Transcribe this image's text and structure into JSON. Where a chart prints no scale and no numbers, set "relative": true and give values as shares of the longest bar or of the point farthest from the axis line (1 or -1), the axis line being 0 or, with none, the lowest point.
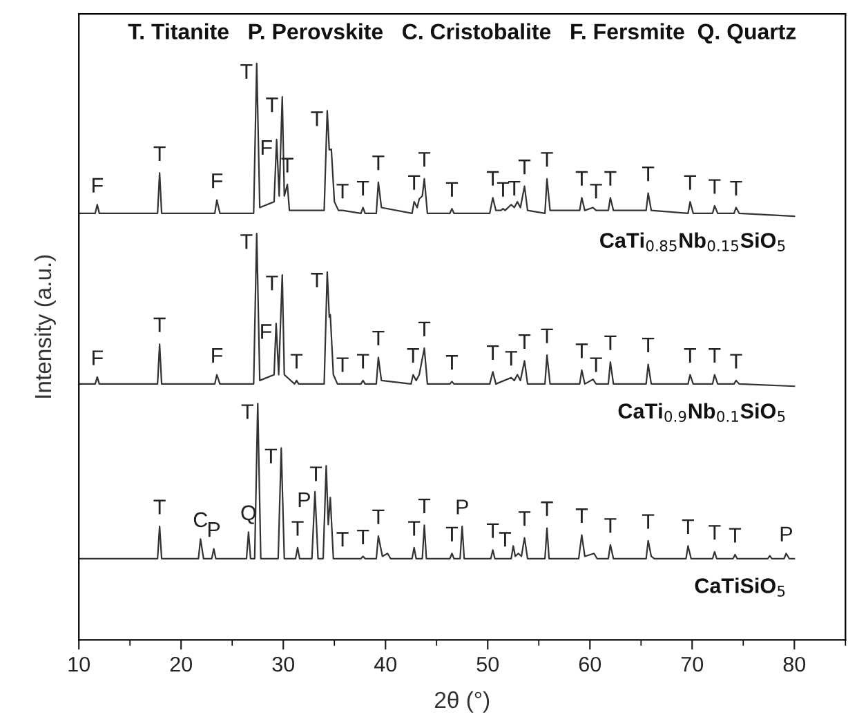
{
  "chart_data": {
    "type": "line",
    "relative": true,
    "xlabel": "2θ (°)",
    "ylabel": "Intensity (a.u.)",
    "xlim": [
      10,
      85
    ],
    "xticks": [
      10,
      20,
      30,
      40,
      50,
      60,
      70,
      80
    ],
    "grid": false,
    "legend": false,
    "marker": "none",
    "line_style": "solid",
    "tick_labels": "x",
    "series": [
      {
        "name": "CaTi$_{0.85}$Nb$_{0.15}$SiO$_{5}$",
        "color": "#333333",
        "x": [
          10,
          11.6,
          11.8,
          12.0,
          17.7,
          17.9,
          18.1,
          23.3,
          23.5,
          23.8,
          27.1,
          27.4,
          27.7,
          29.1,
          29.35,
          29.6,
          29.9,
          30.1,
          30.4,
          30.6,
          34.0,
          34.3,
          34.5,
          34.7,
          35.0,
          35.4,
          35.8,
          37.6,
          37.8,
          38.0,
          39.1,
          39.3,
          39.6,
          42.6,
          42.8,
          43.1,
          43.3,
          43.6,
          43.8,
          44.1,
          46.3,
          46.5,
          46.7,
          50.2,
          50.5,
          50.8,
          51.3,
          51.5,
          51.7,
          52.3,
          52.6,
          52.9,
          53.2,
          53.6,
          53.9,
          55.6,
          55.8,
          56.1,
          59.0,
          59.2,
          59.5,
          60.3,
          60.6,
          61.8,
          62.0,
          62.3,
          65.5,
          65.7,
          66.0,
          69.6,
          69.8,
          70.1,
          72.0,
          72.2,
          72.5,
          74.1,
          74.3,
          74.6,
          80
        ],
        "values": [
          0.74,
          0.74,
          0.755,
          0.74,
          0.74,
          0.81,
          0.74,
          0.74,
          0.763,
          0.74,
          0.74,
          1.0,
          0.75,
          0.76,
          0.868,
          0.77,
          0.942,
          0.77,
          0.79,
          0.745,
          0.745,
          0.918,
          0.85,
          0.851,
          0.76,
          0.745,
          0.745,
          0.74,
          0.75,
          0.74,
          0.74,
          0.794,
          0.75,
          0.74,
          0.76,
          0.75,
          0.765,
          0.77,
          0.8,
          0.74,
          0.74,
          0.748,
          0.74,
          0.74,
          0.767,
          0.745,
          0.745,
          0.748,
          0.745,
          0.755,
          0.75,
          0.76,
          0.75,
          0.787,
          0.745,
          0.74,
          0.8,
          0.745,
          0.745,
          0.767,
          0.745,
          0.75,
          0.745,
          0.745,
          0.767,
          0.745,
          0.745,
          0.775,
          0.745,
          0.74,
          0.76,
          0.74,
          0.74,
          0.753,
          0.74,
          0.74,
          0.75,
          0.74,
          0.735
        ]
      },
      {
        "name": "CaTi$_{0.9}$Nb$_{0.1}$SiO$_{5}$",
        "color": "#333333",
        "x": [
          10,
          11.6,
          11.8,
          12.0,
          17.7,
          17.9,
          18.1,
          23.3,
          23.5,
          23.8,
          27.1,
          27.4,
          27.7,
          29.1,
          29.3,
          29.55,
          29.9,
          30.1,
          31.1,
          31.3,
          31.5,
          34.0,
          34.3,
          34.5,
          34.6,
          34.9,
          35.3,
          35.8,
          37.6,
          37.8,
          38.0,
          39.1,
          39.3,
          39.6,
          42.5,
          42.7,
          43.0,
          43.3,
          43.8,
          44.1,
          46.3,
          46.5,
          46.7,
          50.2,
          50.5,
          50.8,
          52.3,
          52.6,
          52.9,
          53.2,
          53.6,
          53.9,
          55.6,
          55.8,
          56.1,
          59.0,
          59.2,
          59.5,
          60.3,
          60.6,
          61.8,
          62.0,
          62.3,
          65.5,
          65.7,
          66.0,
          69.6,
          69.8,
          70.1,
          72.0,
          72.2,
          72.5,
          74.1,
          74.3,
          74.6,
          80
        ],
        "values": [
          0.444,
          0.444,
          0.456,
          0.444,
          0.444,
          0.513,
          0.444,
          0.444,
          0.46,
          0.444,
          0.444,
          0.705,
          0.45,
          0.46,
          0.549,
          0.46,
          0.633,
          0.46,
          0.444,
          0.45,
          0.444,
          0.444,
          0.638,
          0.56,
          0.564,
          0.46,
          0.444,
          0.444,
          0.444,
          0.45,
          0.444,
          0.444,
          0.49,
          0.45,
          0.444,
          0.46,
          0.45,
          0.46,
          0.506,
          0.444,
          0.444,
          0.448,
          0.444,
          0.444,
          0.465,
          0.444,
          0.455,
          0.45,
          0.46,
          0.45,
          0.484,
          0.444,
          0.444,
          0.494,
          0.444,
          0.444,
          0.468,
          0.444,
          0.452,
          0.444,
          0.444,
          0.482,
          0.444,
          0.444,
          0.478,
          0.444,
          0.444,
          0.46,
          0.444,
          0.444,
          0.46,
          0.444,
          0.444,
          0.45,
          0.444,
          0.44
        ]
      },
      {
        "name": "CaTiSiO$_{5}$",
        "color": "#333333",
        "x": [
          10,
          17.7,
          17.9,
          18.1,
          21.7,
          21.9,
          22.2,
          23.0,
          23.2,
          23.4,
          26.4,
          26.6,
          26.8,
          27.2,
          27.5,
          27.8,
          29.5,
          29.8,
          30.1,
          31.2,
          31.4,
          31.6,
          32.8,
          33.1,
          33.4,
          33.9,
          34.2,
          34.4,
          34.6,
          34.9,
          35.8,
          37.6,
          37.8,
          38.0,
          39.1,
          39.3,
          39.7,
          40.2,
          40.5,
          42.6,
          42.8,
          43.0,
          43.6,
          43.8,
          44.0,
          46.3,
          46.5,
          46.7,
          47.3,
          47.5,
          47.7,
          50.3,
          50.5,
          50.7,
          51.7,
          52.3,
          52.5,
          52.7,
          53.0,
          53.3,
          53.6,
          53.9,
          55.6,
          55.8,
          56.0,
          58.9,
          59.2,
          59.5,
          60.4,
          60.7,
          61.8,
          62.0,
          62.3,
          65.5,
          65.7,
          66.0,
          66.3,
          69.4,
          69.6,
          69.9,
          72.0,
          72.2,
          72.4,
          74.0,
          74.2,
          74.4,
          77.4,
          77.6,
          77.8,
          79.0,
          79.2,
          79.5,
          80
        ],
        "values": [
          0.141,
          0.141,
          0.197,
          0.141,
          0.141,
          0.175,
          0.141,
          0.141,
          0.158,
          0.141,
          0.141,
          0.187,
          0.141,
          0.141,
          0.41,
          0.141,
          0.141,
          0.333,
          0.141,
          0.141,
          0.16,
          0.141,
          0.141,
          0.257,
          0.141,
          0.141,
          0.302,
          0.2,
          0.247,
          0.141,
          0.141,
          0.141,
          0.145,
          0.141,
          0.141,
          0.18,
          0.145,
          0.15,
          0.141,
          0.141,
          0.16,
          0.141,
          0.141,
          0.199,
          0.141,
          0.141,
          0.15,
          0.141,
          0.141,
          0.197,
          0.141,
          0.141,
          0.156,
          0.141,
          0.141,
          0.141,
          0.163,
          0.145,
          0.15,
          0.145,
          0.177,
          0.141,
          0.141,
          0.194,
          0.141,
          0.141,
          0.182,
          0.145,
          0.15,
          0.141,
          0.141,
          0.165,
          0.141,
          0.141,
          0.172,
          0.145,
          0.141,
          0.141,
          0.163,
          0.141,
          0.141,
          0.153,
          0.141,
          0.141,
          0.148,
          0.141,
          0.141,
          0.146,
          0.141,
          0.141,
          0.15,
          0.141,
          0.141
        ]
      }
    ],
    "annotations": [
      "T. Titanite   P. Perovskite   C. Cristobalite   F. Fersmite  Q. Quartz",
      {
        "text": "F",
        "x": 11.8,
        "y": 0.755
      },
      {
        "text": "T",
        "x": 17.9,
        "y": 0.81
      },
      {
        "text": "F",
        "x": 23.5,
        "y": 0.763
      },
      {
        "text": "T",
        "x": 27.4,
        "y": 1.0
      },
      {
        "text": "F",
        "x": 29.35,
        "y": 0.868
      },
      {
        "text": "T",
        "x": 29.9,
        "y": 0.942
      },
      {
        "text": "T",
        "x": 30.4,
        "y": 0.79
      },
      {
        "text": "T",
        "x": 34.3,
        "y": 0.918
      },
      {
        "text": "T",
        "x": 35.8,
        "y": 0.745
      },
      {
        "text": "T",
        "x": 37.8,
        "y": 0.75
      },
      {
        "text": "T",
        "x": 39.3,
        "y": 0.794
      },
      {
        "text": "T",
        "x": 42.8,
        "y": 0.76
      },
      {
        "text": "T",
        "x": 43.8,
        "y": 0.8
      },
      {
        "text": "T",
        "x": 46.5,
        "y": 0.748
      },
      {
        "text": "T",
        "x": 50.5,
        "y": 0.767
      },
      {
        "text": "T",
        "x": 51.5,
        "y": 0.748
      },
      {
        "text": "T",
        "x": 52.6,
        "y": 0.75
      },
      {
        "text": "T",
        "x": 53.6,
        "y": 0.787
      },
      {
        "text": "T",
        "x": 55.8,
        "y": 0.8
      },
      {
        "text": "T",
        "x": 59.2,
        "y": 0.767
      },
      {
        "text": "T",
        "x": 60.6,
        "y": 0.745
      },
      {
        "text": "T",
        "x": 62.0,
        "y": 0.767
      },
      {
        "text": "T",
        "x": 65.7,
        "y": 0.775
      },
      {
        "text": "T",
        "x": 69.8,
        "y": 0.76
      },
      {
        "text": "T",
        "x": 72.2,
        "y": 0.753
      },
      {
        "text": "T",
        "x": 74.3,
        "y": 0.75
      },
      {
        "text": "F",
        "x": 11.8,
        "y": 0.456
      },
      {
        "text": "T",
        "x": 17.9,
        "y": 0.513
      },
      {
        "text": "F",
        "x": 23.5,
        "y": 0.46
      },
      {
        "text": "T",
        "x": 27.4,
        "y": 0.705
      },
      {
        "text": "F",
        "x": 29.3,
        "y": 0.549
      },
      {
        "text": "T",
        "x": 29.9,
        "y": 0.633
      },
      {
        "text": "T",
        "x": 31.3,
        "y": 0.45
      },
      {
        "text": "T",
        "x": 34.3,
        "y": 0.638
      },
      {
        "text": "T",
        "x": 35.8,
        "y": 0.444
      },
      {
        "text": "T",
        "x": 37.8,
        "y": 0.45
      },
      {
        "text": "T",
        "x": 39.3,
        "y": 0.49
      },
      {
        "text": "T",
        "x": 42.7,
        "y": 0.46
      },
      {
        "text": "T",
        "x": 43.8,
        "y": 0.506
      },
      {
        "text": "T",
        "x": 46.5,
        "y": 0.448
      },
      {
        "text": "T",
        "x": 50.5,
        "y": 0.465
      },
      {
        "text": "T",
        "x": 52.3,
        "y": 0.455
      },
      {
        "text": "T",
        "x": 53.6,
        "y": 0.484
      },
      {
        "text": "T",
        "x": 55.8,
        "y": 0.494
      },
      {
        "text": "T",
        "x": 59.2,
        "y": 0.468
      },
      {
        "text": "T",
        "x": 60.6,
        "y": 0.444
      },
      {
        "text": "T",
        "x": 62.0,
        "y": 0.482
      },
      {
        "text": "T",
        "x": 65.7,
        "y": 0.478
      },
      {
        "text": "T",
        "x": 69.8,
        "y": 0.46
      },
      {
        "text": "T",
        "x": 72.2,
        "y": 0.46
      },
      {
        "text": "T",
        "x": 74.3,
        "y": 0.45
      },
      {
        "text": "T",
        "x": 17.9,
        "y": 0.197
      },
      {
        "text": "C",
        "x": 21.9,
        "y": 0.175
      },
      {
        "text": "P",
        "x": 23.2,
        "y": 0.158
      },
      {
        "text": "Q",
        "x": 26.6,
        "y": 0.187
      },
      {
        "text": "T",
        "x": 27.5,
        "y": 0.41
      },
      {
        "text": "T",
        "x": 29.8,
        "y": 0.333
      },
      {
        "text": "T",
        "x": 31.4,
        "y": 0.16
      },
      {
        "text": "P",
        "x": 33.1,
        "y": 0.257
      },
      {
        "text": "T",
        "x": 34.2,
        "y": 0.302
      },
      {
        "text": "T",
        "x": 35.8,
        "y": 0.141
      },
      {
        "text": "T",
        "x": 37.8,
        "y": 0.145
      },
      {
        "text": "T",
        "x": 39.3,
        "y": 0.18
      },
      {
        "text": "T",
        "x": 42.8,
        "y": 0.16
      },
      {
        "text": "T",
        "x": 43.8,
        "y": 0.199
      },
      {
        "text": "T",
        "x": 46.5,
        "y": 0.15
      },
      {
        "text": "P",
        "x": 47.5,
        "y": 0.197
      },
      {
        "text": "T",
        "x": 50.5,
        "y": 0.156
      },
      {
        "text": "T",
        "x": 51.7,
        "y": 0.141
      },
      {
        "text": "T",
        "x": 53.6,
        "y": 0.177
      },
      {
        "text": "T",
        "x": 55.8,
        "y": 0.194
      },
      {
        "text": "T",
        "x": 59.2,
        "y": 0.182
      },
      {
        "text": "T",
        "x": 62.0,
        "y": 0.165
      },
      {
        "text": "T",
        "x": 65.7,
        "y": 0.172
      },
      {
        "text": "T",
        "x": 69.6,
        "y": 0.163
      },
      {
        "text": "T",
        "x": 72.2,
        "y": 0.153
      },
      {
        "text": "T",
        "x": 74.2,
        "y": 0.148
      },
      {
        "text": "P",
        "x": 79.2,
        "y": 0.15
      }
    ]
  }
}
